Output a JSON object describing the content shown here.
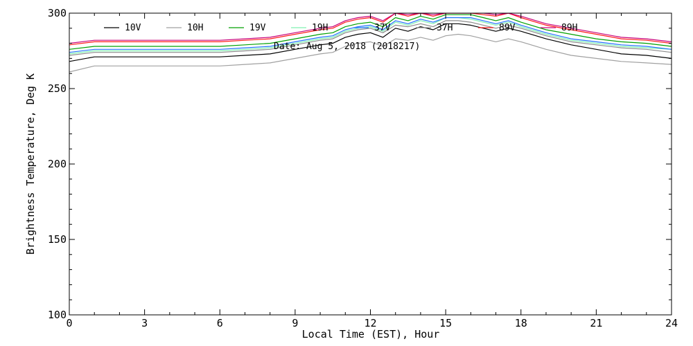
{
  "chart_data": {
    "type": "line",
    "annotation": "Date: Aug  5, 2018 (2018217)",
    "xlabel": "Local Time (EST), Hour",
    "ylabel": "Brightness Temperature, Deg K",
    "xlim": [
      0,
      24
    ],
    "ylim": [
      100,
      300
    ],
    "xticks": [
      0,
      3,
      6,
      9,
      12,
      15,
      18,
      21,
      24
    ],
    "yticks": [
      100,
      150,
      200,
      250,
      300
    ],
    "grid": false,
    "legend_position": "top",
    "x": [
      0,
      1,
      2,
      3,
      4,
      5,
      6,
      7,
      8,
      9,
      10,
      10.5,
      11,
      11.5,
      12,
      12.5,
      13,
      13.5,
      14,
      14.5,
      15,
      15.5,
      16,
      16.5,
      17,
      17.5,
      18,
      19,
      20,
      21,
      22,
      23,
      24
    ],
    "series": [
      {
        "name": "10V",
        "color": "#000000",
        "values": [
          268,
          271,
          271,
          271,
          271,
          271,
          271,
          272,
          273,
          276,
          279,
          280,
          284,
          286,
          287,
          284,
          290,
          288,
          291,
          289,
          293,
          293,
          292,
          290,
          288,
          290,
          288,
          283,
          279,
          276,
          273,
          272,
          270
        ]
      },
      {
        "name": "10H",
        "color": "#a0a0a0",
        "values": [
          261,
          265,
          265,
          265,
          265,
          265,
          265,
          266,
          267,
          270,
          273,
          274,
          278,
          280,
          281,
          278,
          283,
          282,
          284,
          282,
          285,
          286,
          285,
          283,
          281,
          283,
          281,
          276,
          272,
          270,
          268,
          267,
          266
        ]
      },
      {
        "name": "19V",
        "color": "#00a000",
        "values": [
          276,
          278,
          278,
          278,
          278,
          278,
          278,
          279,
          280,
          283,
          286,
          287,
          291,
          293,
          294,
          291,
          297,
          295,
          298,
          296,
          299,
          299,
          299,
          297,
          295,
          297,
          294,
          289,
          286,
          283,
          281,
          280,
          278
        ]
      },
      {
        "name": "19H",
        "color": "#7ff0b0",
        "values": [
          273,
          275,
          275,
          275,
          275,
          275,
          275,
          276,
          277,
          280,
          283,
          284,
          288,
          290,
          291,
          288,
          294,
          292,
          295,
          293,
          297,
          297,
          296,
          294,
          292,
          294,
          291,
          286,
          282,
          280,
          278,
          277,
          276
        ]
      },
      {
        "name": "37V",
        "color": "#2070ff",
        "values": [
          274,
          276,
          276,
          276,
          276,
          276,
          276,
          277,
          278,
          281,
          284,
          285,
          289,
          291,
          292,
          289,
          295,
          293,
          296,
          294,
          297,
          297,
          297,
          295,
          293,
          295,
          292,
          287,
          283,
          281,
          279,
          278,
          276
        ]
      },
      {
        "name": "37H",
        "color": "#8a8a8a",
        "values": [
          272,
          274,
          274,
          274,
          274,
          274,
          274,
          275,
          276,
          279,
          282,
          283,
          287,
          289,
          290,
          287,
          292,
          291,
          293,
          291,
          295,
          295,
          294,
          292,
          290,
          292,
          290,
          285,
          281,
          279,
          277,
          276,
          274
        ]
      },
      {
        "name": "89V",
        "color": "#ff1a1a",
        "values": [
          279,
          281,
          281,
          281,
          281,
          281,
          281,
          282,
          283,
          286,
          289,
          290,
          294,
          296,
          297,
          294,
          300,
          298,
          300,
          298,
          300,
          300,
          300,
          299,
          298,
          300,
          297,
          292,
          289,
          286,
          283,
          282,
          280
        ]
      },
      {
        "name": "89H",
        "color": "#c8007a",
        "values": [
          280,
          282,
          282,
          282,
          282,
          282,
          282,
          283,
          284,
          287,
          290,
          291,
          295,
          297,
          298,
          295,
          300,
          299,
          300,
          299,
          300,
          300,
          300,
          300,
          299,
          300,
          298,
          293,
          290,
          287,
          284,
          283,
          281
        ]
      }
    ]
  }
}
